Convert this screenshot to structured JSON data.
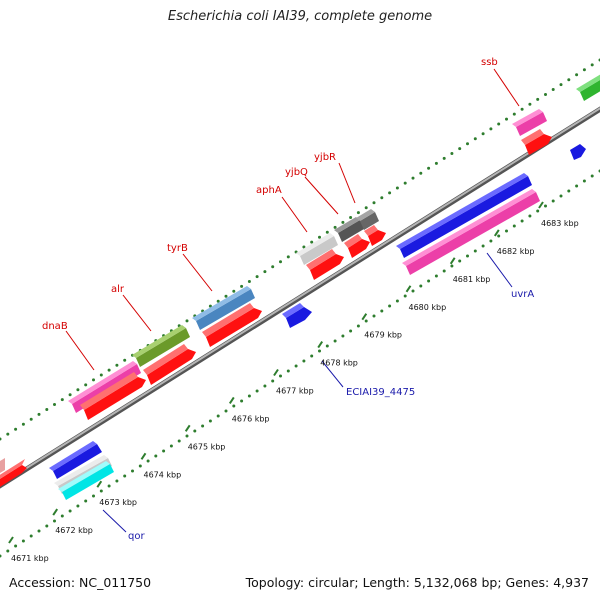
{
  "title": "Escherichia coli IAI39, complete genome",
  "footer": {
    "accession": "Accession: NC_011750",
    "summary": "Topology: circular; Length: 5,132,068 bp; Genes: 4,937"
  },
  "colors": {
    "backbone": "#8a8a8a",
    "dots": "#2e7d2e",
    "red_label": "#d40000",
    "blue_label": "#1a1aaa"
  },
  "ticks": [
    "4671 kbp",
    "4672 kbp",
    "4673 kbp",
    "4674 kbp",
    "4675 kbp",
    "4676 kbp",
    "4677 kbp",
    "4678 kbp",
    "4679 kbp",
    "4680 kbp",
    "4681 kbp",
    "4682 kbp",
    "4683 kbp"
  ],
  "genes": [
    {
      "id": "dnaB",
      "label": "dnaB",
      "strand": "+",
      "color": "#ec3fa8"
    },
    {
      "id": "alr",
      "label": "alr",
      "strand": "+",
      "color": "#6b9a2a"
    },
    {
      "id": "tyrB",
      "label": "tyrB",
      "strand": "+",
      "color": "#4a86c0"
    },
    {
      "id": "aphA",
      "label": "aphA",
      "strand": "+",
      "color": "#c9c9c9"
    },
    {
      "id": "yjbQ",
      "label": "yjbQ",
      "strand": "+",
      "color": "#555555"
    },
    {
      "id": "yjbR",
      "label": "yjbR",
      "strand": "+",
      "color": "#666666"
    },
    {
      "id": "ssb",
      "label": "ssb",
      "strand": "+",
      "color": "#ec3fa8"
    },
    {
      "id": "uvrA",
      "label": "uvrA",
      "strand": "-",
      "color": "#1a1ae0"
    },
    {
      "id": "ECIAI39_4475",
      "label": "ECIAI39_4475",
      "strand": "-",
      "color": "#1a1ae0"
    },
    {
      "id": "qor",
      "label": "qor",
      "strand": "-",
      "color": "#1a1ae0"
    }
  ]
}
